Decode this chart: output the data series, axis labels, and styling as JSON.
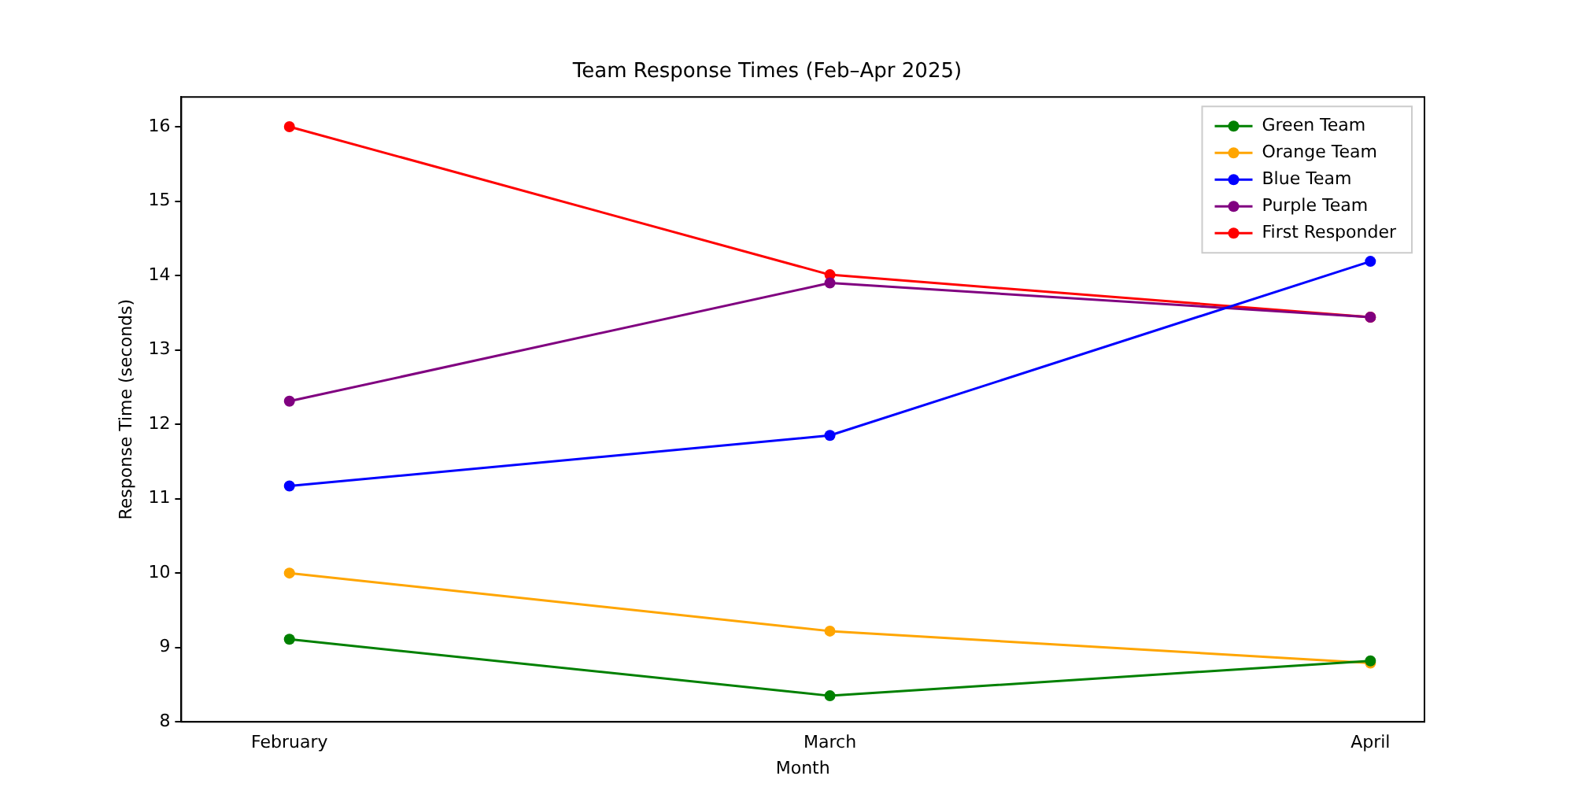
{
  "chart_data": {
    "type": "line",
    "title": "Team Response Times (Feb–Apr 2025)",
    "xlabel": "Month",
    "ylabel": "Response Time (seconds)",
    "categories": [
      "February",
      "March",
      "April"
    ],
    "series": [
      {
        "name": "Green Team",
        "color": "#008000",
        "values": [
          9.11,
          8.35,
          8.82
        ]
      },
      {
        "name": "Orange Team",
        "color": "#ffa500",
        "values": [
          10.0,
          9.22,
          8.79
        ]
      },
      {
        "name": "Blue Team",
        "color": "#0000ff",
        "values": [
          11.17,
          11.85,
          14.19
        ]
      },
      {
        "name": "Purple Team",
        "color": "#800080",
        "values": [
          12.31,
          13.9,
          13.44
        ]
      },
      {
        "name": "First Responder",
        "color": "#ff0000",
        "values": [
          16.0,
          14.01,
          13.44
        ]
      }
    ],
    "ylim": [
      8,
      16.4
    ],
    "yticks": [
      8,
      9,
      10,
      11,
      12,
      13,
      14,
      15,
      16
    ],
    "grid": false,
    "legend": "top right",
    "marker": "circle",
    "line_style": "solid"
  }
}
